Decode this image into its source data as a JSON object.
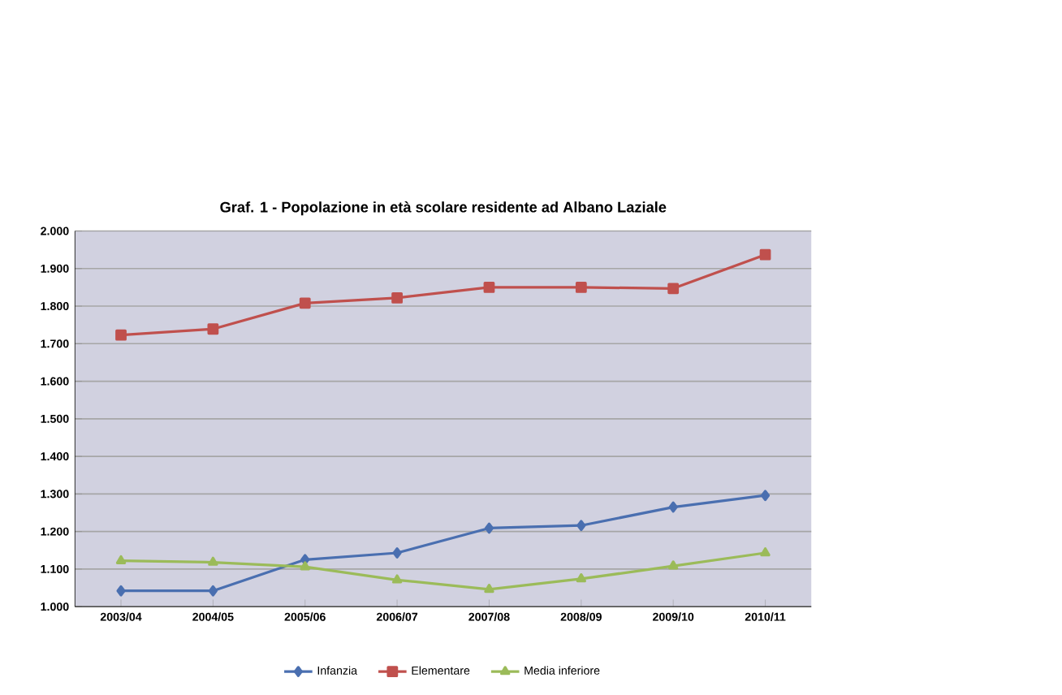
{
  "chart_data": {
    "type": "line",
    "title": "Graf. 1 - Popolazione in età scolare residente ad Albano Laziale",
    "categories": [
      "2003/04",
      "2004/05",
      "2005/06",
      "2006/07",
      "2007/08",
      "2008/09",
      "2009/10",
      "2010/11"
    ],
    "series": [
      {
        "name": "Infanzia",
        "color": "#4a6fb0",
        "marker": "diamond",
        "values": [
          1042,
          1042,
          1125,
          1143,
          1209,
          1216,
          1265,
          1296
        ]
      },
      {
        "name": "Elementare",
        "color": "#c0504d",
        "marker": "square",
        "values": [
          1723,
          1739,
          1808,
          1822,
          1850,
          1850,
          1847,
          1937
        ]
      },
      {
        "name": "Media inferiore",
        "color": "#9bbb59",
        "marker": "triangle",
        "values": [
          1122,
          1118,
          1106,
          1071,
          1046,
          1074,
          1108,
          1143
        ]
      }
    ],
    "ylim": [
      1000,
      2000
    ],
    "yticks": [
      {
        "value": 1000,
        "label": "1.000"
      },
      {
        "value": 1100,
        "label": "1.100"
      },
      {
        "value": 1200,
        "label": "1.200"
      },
      {
        "value": 1300,
        "label": "1.300"
      },
      {
        "value": 1400,
        "label": "1.400"
      },
      {
        "value": 1500,
        "label": "1.500"
      },
      {
        "value": 1600,
        "label": "1.600"
      },
      {
        "value": 1700,
        "label": "1.700"
      },
      {
        "value": 1800,
        "label": "1.800"
      },
      {
        "value": 1900,
        "label": "1.900"
      },
      {
        "value": 2000,
        "label": "2.000"
      }
    ],
    "grid": "y",
    "legend": "bottom"
  }
}
